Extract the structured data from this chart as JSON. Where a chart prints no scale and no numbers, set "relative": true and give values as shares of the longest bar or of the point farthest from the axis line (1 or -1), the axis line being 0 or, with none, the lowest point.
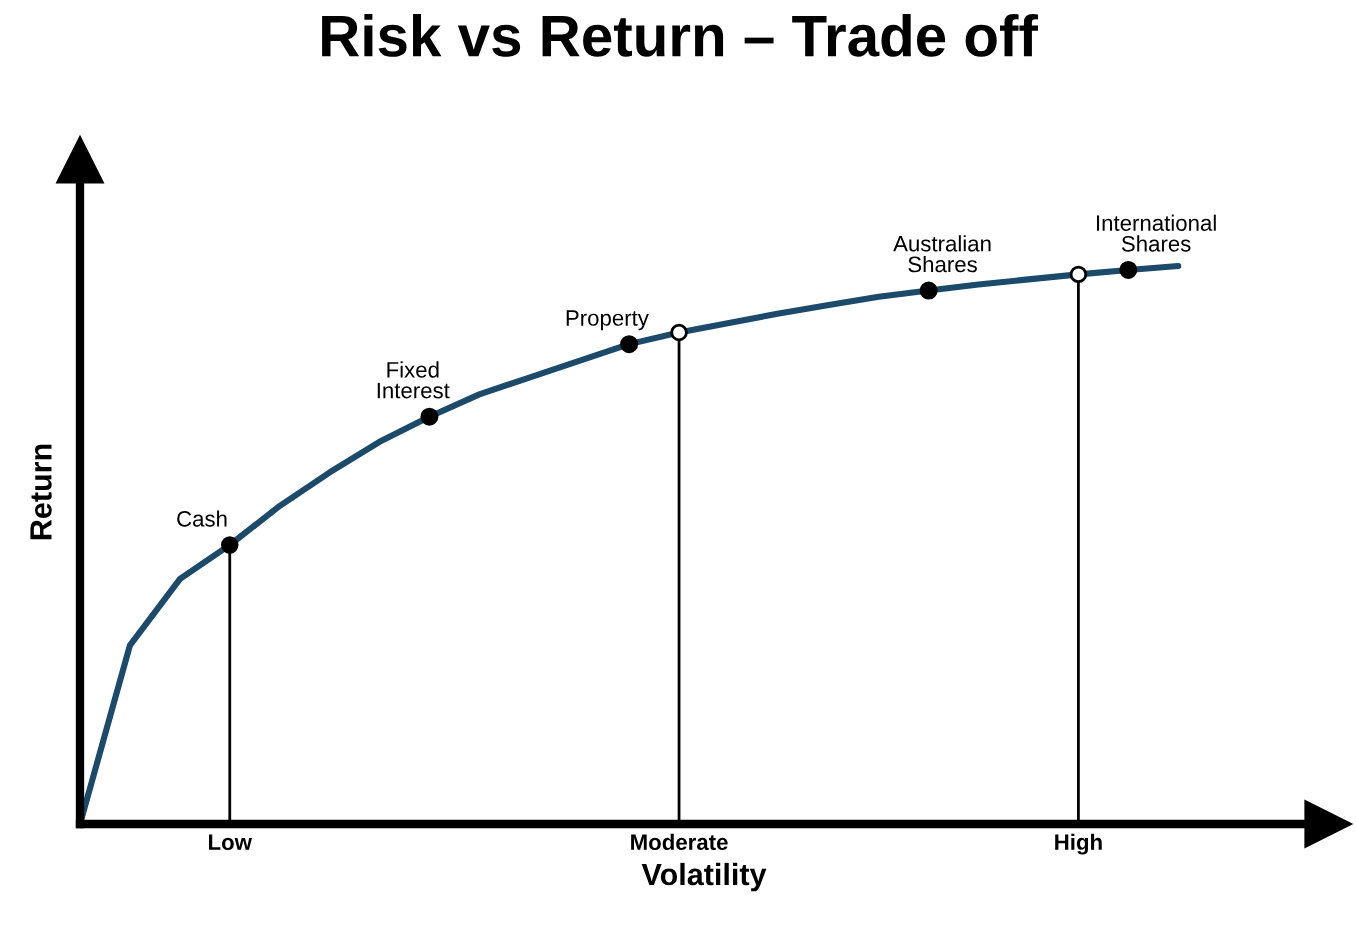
{
  "chart_data": {
    "type": "line",
    "title": "Risk vs Return – Trade off",
    "xlabel": "Volatility",
    "ylabel": "Return",
    "relative": true,
    "categories": [
      null,
      null,
      null,
      "Low",
      null,
      null,
      null,
      null,
      null,
      null,
      null,
      null,
      "Moderate",
      null,
      null,
      null,
      null,
      null,
      null,
      null,
      "High",
      null,
      null
    ],
    "series": [
      {
        "color": "#1b4a6b",
        "values": [
          0,
          0.32,
          0.439,
          0.5,
          0.57,
          0.63,
          0.685,
          0.73,
          0.77,
          0.8,
          0.83,
          0.86,
          0.881,
          0.898,
          0.915,
          0.93,
          0.945,
          0.956,
          0.967,
          0.976,
          0.985,
          0.993,
          1
        ]
      },
      {
        "type": "lollipop",
        "color": "#ffffff",
        "marker": "circle",
        "values": [
          null,
          null,
          null,
          null,
          null,
          null,
          null,
          null,
          null,
          null,
          null,
          null,
          0.881,
          null,
          null,
          null,
          null,
          null,
          null,
          null,
          0.985,
          null,
          null
        ]
      },
      {
        "type": "lollipop",
        "name": "Cash",
        "color": "#000000",
        "marker": "circle",
        "values": [
          null,
          null,
          null,
          0.5,
          null,
          null,
          null,
          null,
          null,
          null,
          null,
          null,
          null,
          null,
          null,
          null,
          null,
          null,
          null,
          null,
          null,
          null,
          null
        ]
      },
      {
        "type": "scatter",
        "name": "Fixed\nInterest",
        "color": "#000000",
        "marker": "circle",
        "values": [
          null,
          null,
          null,
          null,
          null,
          null,
          null,
          0.73,
          null,
          null,
          null,
          null,
          null,
          null,
          null,
          null,
          null,
          null,
          null,
          null,
          null,
          null,
          null
        ]
      },
      {
        "type": "scatter",
        "name": "Property",
        "color": "#000000",
        "marker": "circle",
        "values": [
          null,
          null,
          null,
          null,
          null,
          null,
          null,
          null,
          null,
          null,
          null,
          0.86,
          null,
          null,
          null,
          null,
          null,
          null,
          null,
          null,
          null,
          null,
          null
        ]
      },
      {
        "type": "scatter",
        "name": "Australian\nShares",
        "color": "#000000",
        "marker": "circle",
        "values": [
          null,
          null,
          null,
          null,
          null,
          null,
          null,
          null,
          null,
          null,
          null,
          null,
          null,
          null,
          null,
          null,
          null,
          0.956,
          null,
          null,
          null,
          null,
          null
        ]
      },
      {
        "type": "scatter",
        "name": "International\nShares",
        "color": "#000000",
        "marker": "circle",
        "values": [
          null,
          null,
          null,
          null,
          null,
          null,
          null,
          null,
          null,
          null,
          null,
          null,
          null,
          null,
          null,
          null,
          null,
          null,
          null,
          null,
          null,
          0.993,
          null
        ]
      }
    ]
  }
}
